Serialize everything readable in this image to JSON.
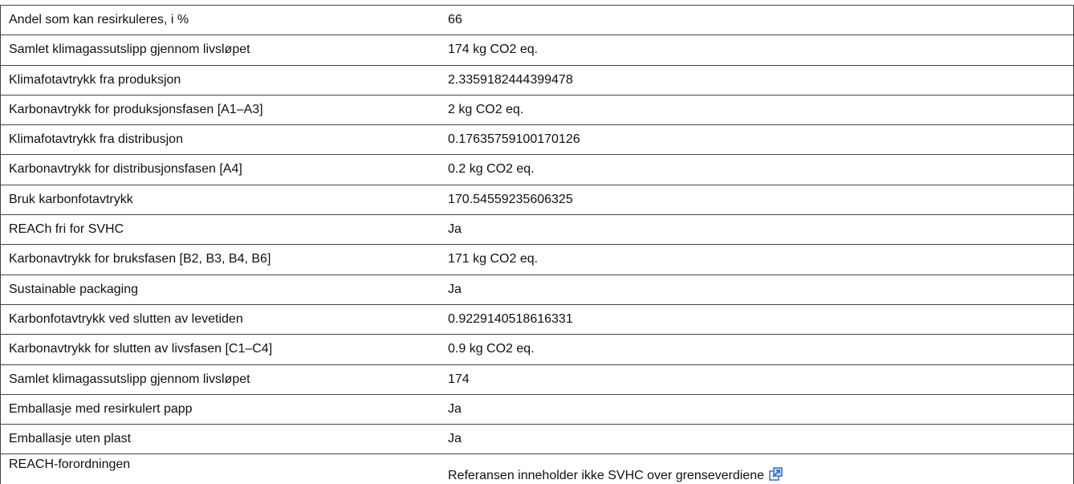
{
  "table": {
    "rows": [
      [
        "Andel som kan resirkuleres, i %",
        "66"
      ],
      [
        "Samlet klimagassutslipp gjennom livsløpet",
        "174 kg CO2 eq."
      ],
      [
        "Klimafotavtrykk fra produksjon",
        "2.3359182444399478"
      ],
      [
        "Karbonavtrykk for produksjonsfasen [A1–A3]",
        "2 kg CO2 eq."
      ],
      [
        "Klimafotavtrykk fra distribusjon",
        "0.17635759100170126"
      ],
      [
        "Karbonavtrykk for distribusjonsfasen [A4]",
        "0.2 kg CO2 eq."
      ],
      [
        "Bruk karbonfotavtrykk",
        "170.54559235606325"
      ],
      [
        "REACh fri for SVHC",
        "Ja"
      ],
      [
        "Karbonavtrykk for bruksfasen [B2, B3, B4, B6]",
        "171 kg CO2 eq."
      ],
      [
        "Sustainable packaging",
        "Ja"
      ],
      [
        "Karbonfotavtrykk ved slutten av levetiden",
        "0.9229140518616331"
      ],
      [
        "Karbonavtrykk for slutten av livsfasen [C1–C4]",
        "0.9 kg CO2 eq."
      ],
      [
        "Samlet klimagassutslipp gjennom livsløpet",
        "174"
      ],
      [
        "Emballasje med resirkulert papp",
        "Ja"
      ],
      [
        "Emballasje uten plast",
        "Ja"
      ],
      [
        "REACH-forordningen",
        "Referansen inneholder ikke SVHC over grenseverdiene"
      ]
    ]
  }
}
